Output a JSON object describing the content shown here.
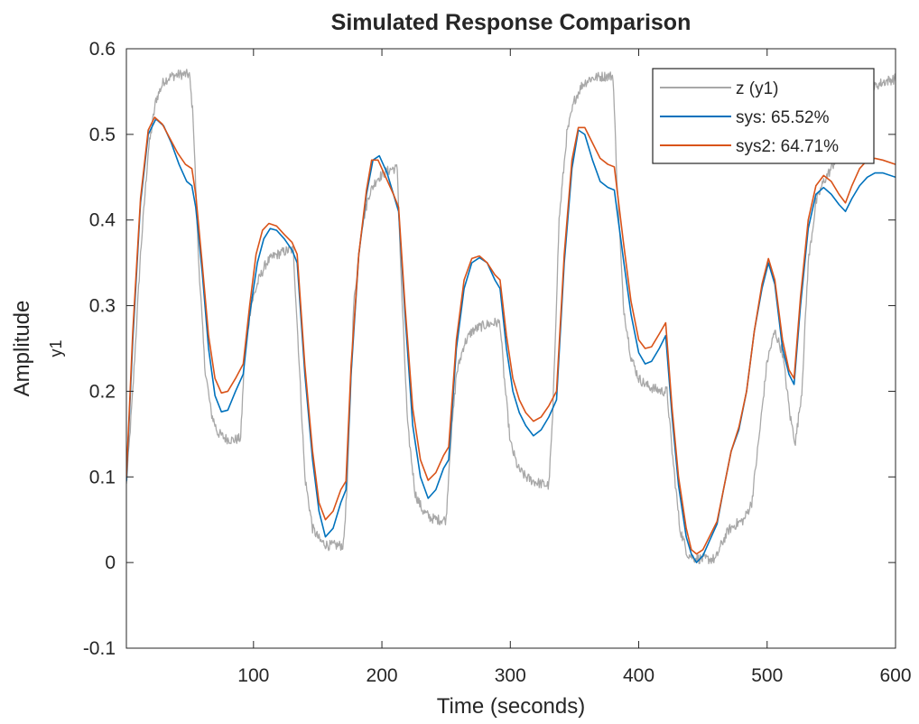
{
  "chart_data": {
    "type": "line",
    "title": "Simulated Response Comparison",
    "xlabel": "Time (seconds)",
    "ylabel": "Amplitude",
    "ylabel2": "y1",
    "xlim": [
      1,
      600
    ],
    "ylim": [
      -0.1,
      0.6
    ],
    "xticks": [
      100,
      200,
      300,
      400,
      500,
      600
    ],
    "yticks": [
      -0.1,
      0,
      0.1,
      0.2,
      0.3,
      0.4,
      0.5,
      0.6
    ],
    "grid": false,
    "legend_position": "top-right",
    "series": [
      {
        "name": "z (y1)",
        "color": "#a8a8a8",
        "noise": 0.006,
        "x": [
          1,
          6,
          12,
          18,
          24,
          30,
          36,
          43,
          50,
          53,
          57,
          62,
          67,
          72,
          78,
          84,
          90,
          93,
          98,
          104,
          110,
          116,
          122,
          128,
          131,
          135,
          140,
          146,
          152,
          158,
          164,
          170,
          173,
          178,
          184,
          190,
          196,
          202,
          208,
          212,
          215,
          220,
          226,
          232,
          238,
          244,
          250,
          253,
          258,
          264,
          270,
          276,
          282,
          288,
          292,
          295,
          300,
          306,
          312,
          318,
          324,
          330,
          333,
          338,
          344,
          350,
          356,
          362,
          368,
          374,
          380,
          383,
          388,
          394,
          400,
          406,
          412,
          418,
          422,
          426,
          432,
          438,
          444,
          450,
          456,
          460,
          464,
          470,
          476,
          482,
          488,
          494,
          500,
          506,
          512,
          518,
          522,
          527,
          532,
          538,
          544,
          550,
          556,
          562,
          568,
          574,
          580,
          586,
          592,
          600
        ],
        "y": [
          0.09,
          0.2,
          0.36,
          0.48,
          0.54,
          0.562,
          0.568,
          0.57,
          0.57,
          0.52,
          0.36,
          0.23,
          0.175,
          0.152,
          0.145,
          0.143,
          0.145,
          0.24,
          0.3,
          0.33,
          0.35,
          0.358,
          0.362,
          0.365,
          0.365,
          0.25,
          0.1,
          0.04,
          0.025,
          0.02,
          0.02,
          0.02,
          0.09,
          0.3,
          0.39,
          0.43,
          0.448,
          0.455,
          0.46,
          0.46,
          0.33,
          0.16,
          0.08,
          0.06,
          0.052,
          0.05,
          0.05,
          0.13,
          0.22,
          0.255,
          0.27,
          0.275,
          0.278,
          0.28,
          0.28,
          0.22,
          0.14,
          0.11,
          0.1,
          0.095,
          0.092,
          0.09,
          0.17,
          0.4,
          0.5,
          0.54,
          0.558,
          0.565,
          0.567,
          0.568,
          0.568,
          0.45,
          0.3,
          0.24,
          0.215,
          0.207,
          0.203,
          0.2,
          0.2,
          0.13,
          0.04,
          0.01,
          0.005,
          0.004,
          0.004,
          0.004,
          0.02,
          0.038,
          0.045,
          0.05,
          0.07,
          0.15,
          0.235,
          0.27,
          0.245,
          0.17,
          0.14,
          0.2,
          0.35,
          0.42,
          0.445,
          0.46,
          0.48,
          0.5,
          0.52,
          0.54,
          0.55,
          0.558,
          0.562,
          0.565
        ]
      },
      {
        "name": "sys: 65.52%",
        "color": "#0072bd",
        "x": [
          1,
          6,
          12,
          18,
          24,
          30,
          36,
          42,
          48,
          52,
          55,
          60,
          65,
          70,
          75,
          80,
          86,
          92,
          97,
          103,
          108,
          113,
          118,
          124,
          130,
          134,
          140,
          146,
          151,
          156,
          162,
          168,
          172,
          176,
          182,
          188,
          193,
          198,
          204,
          210,
          213,
          218,
          224,
          230,
          236,
          242,
          248,
          252,
          258,
          264,
          270,
          276,
          282,
          288,
          292,
          297,
          302,
          307,
          312,
          318,
          324,
          330,
          336,
          342,
          348,
          353,
          358,
          364,
          370,
          376,
          381,
          388,
          394,
          400,
          405,
          410,
          416,
          421,
          426,
          431,
          437,
          441,
          445,
          450,
          455,
          461,
          466,
          472,
          478,
          484,
          490,
          496,
          501,
          506,
          512,
          517,
          521,
          526,
          532,
          538,
          544,
          550,
          556,
          561,
          566,
          572,
          578,
          584,
          590,
          600
        ],
        "y": [
          0.095,
          0.26,
          0.42,
          0.5,
          0.518,
          0.51,
          0.49,
          0.465,
          0.445,
          0.44,
          0.415,
          0.34,
          0.25,
          0.195,
          0.176,
          0.178,
          0.2,
          0.22,
          0.29,
          0.35,
          0.378,
          0.39,
          0.388,
          0.378,
          0.365,
          0.35,
          0.22,
          0.12,
          0.06,
          0.03,
          0.04,
          0.07,
          0.085,
          0.22,
          0.36,
          0.43,
          0.47,
          0.475,
          0.455,
          0.425,
          0.41,
          0.29,
          0.16,
          0.1,
          0.075,
          0.085,
          0.11,
          0.12,
          0.25,
          0.32,
          0.35,
          0.356,
          0.35,
          0.33,
          0.32,
          0.25,
          0.2,
          0.175,
          0.16,
          0.148,
          0.155,
          0.17,
          0.19,
          0.35,
          0.46,
          0.505,
          0.5,
          0.47,
          0.445,
          0.438,
          0.435,
          0.355,
          0.29,
          0.245,
          0.232,
          0.235,
          0.25,
          0.265,
          0.17,
          0.09,
          0.03,
          0.01,
          0.0,
          0.008,
          0.025,
          0.045,
          0.085,
          0.13,
          0.155,
          0.2,
          0.27,
          0.32,
          0.35,
          0.325,
          0.25,
          0.22,
          0.208,
          0.3,
          0.39,
          0.43,
          0.438,
          0.43,
          0.418,
          0.41,
          0.425,
          0.44,
          0.45,
          0.455,
          0.455,
          0.45
        ]
      },
      {
        "name": "sys2: 64.71%",
        "color": "#d95319",
        "x": [
          1,
          6,
          12,
          18,
          23,
          29,
          35,
          41,
          47,
          52,
          55,
          60,
          65,
          70,
          75,
          80,
          86,
          92,
          97,
          102,
          107,
          112,
          118,
          124,
          130,
          134,
          140,
          146,
          151,
          156,
          162,
          168,
          172,
          176,
          182,
          188,
          192,
          197,
          203,
          209,
          213,
          218,
          224,
          230,
          236,
          242,
          248,
          252,
          258,
          264,
          270,
          276,
          282,
          288,
          292,
          297,
          302,
          307,
          312,
          318,
          324,
          330,
          336,
          342,
          348,
          353,
          358,
          364,
          370,
          376,
          381,
          388,
          394,
          400,
          405,
          410,
          416,
          421,
          426,
          431,
          437,
          441,
          445,
          450,
          455,
          461,
          466,
          472,
          478,
          484,
          490,
          496,
          501,
          506,
          512,
          517,
          521,
          526,
          532,
          538,
          544,
          550,
          556,
          561,
          566,
          572,
          578,
          584,
          590,
          600
        ],
        "y": [
          0.1,
          0.27,
          0.425,
          0.505,
          0.52,
          0.512,
          0.495,
          0.478,
          0.465,
          0.46,
          0.43,
          0.35,
          0.265,
          0.215,
          0.198,
          0.2,
          0.215,
          0.232,
          0.3,
          0.36,
          0.388,
          0.396,
          0.393,
          0.383,
          0.374,
          0.36,
          0.23,
          0.13,
          0.07,
          0.05,
          0.06,
          0.085,
          0.095,
          0.23,
          0.36,
          0.435,
          0.47,
          0.47,
          0.45,
          0.43,
          0.415,
          0.3,
          0.18,
          0.12,
          0.096,
          0.105,
          0.125,
          0.135,
          0.26,
          0.33,
          0.355,
          0.358,
          0.35,
          0.336,
          0.33,
          0.265,
          0.215,
          0.19,
          0.175,
          0.165,
          0.17,
          0.183,
          0.2,
          0.36,
          0.47,
          0.508,
          0.508,
          0.49,
          0.472,
          0.465,
          0.462,
          0.375,
          0.305,
          0.26,
          0.25,
          0.252,
          0.267,
          0.28,
          0.18,
          0.1,
          0.04,
          0.015,
          0.01,
          0.015,
          0.03,
          0.048,
          0.085,
          0.13,
          0.158,
          0.2,
          0.27,
          0.325,
          0.355,
          0.33,
          0.26,
          0.225,
          0.215,
          0.31,
          0.4,
          0.44,
          0.452,
          0.445,
          0.43,
          0.42,
          0.44,
          0.46,
          0.47,
          0.472,
          0.47,
          0.465
        ]
      }
    ]
  }
}
